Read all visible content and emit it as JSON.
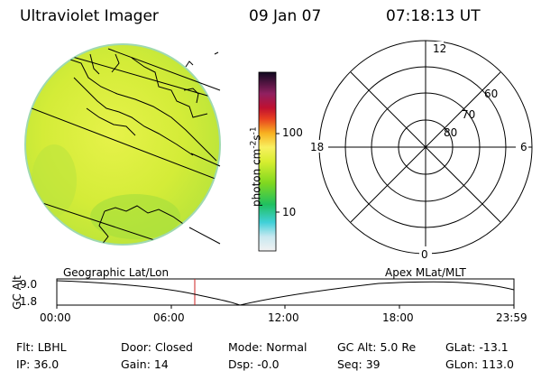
{
  "header": {
    "title": "Ultraviolet Imager",
    "date": "09 Jan 07",
    "time": "07:18:13 UT"
  },
  "colorbar": {
    "label": "photon cm-2s-1",
    "ticks": [
      "100",
      "10"
    ],
    "scale": "log"
  },
  "polar_plot": {
    "mlt_labels": {
      "top": "12",
      "left": "18",
      "right": "6",
      "bottom": "0"
    },
    "lat_labels": [
      "60",
      "70",
      "80"
    ]
  },
  "timeline": {
    "ylabel": "GC Alt",
    "yticks": [
      "9.0",
      "1.8"
    ],
    "left_label": "Geographic Lat/Lon",
    "right_label": "Apex MLat/MLT",
    "xticks": [
      "00:00",
      "06:00",
      "12:00",
      "18:00",
      "23:59"
    ],
    "current_time_marker": "07:18:13"
  },
  "status": {
    "row1": [
      {
        "key": "Flt:",
        "value": "LBHL"
      },
      {
        "key": "Door:",
        "value": "Closed"
      },
      {
        "key": "Mode:",
        "value": "Normal"
      },
      {
        "key": "GC Alt:",
        "value": "5.0 Re"
      },
      {
        "key": "GLat:",
        "value": "-13.1"
      }
    ],
    "row2": [
      {
        "key": "IP:",
        "value": "36.0"
      },
      {
        "key": "Gain:",
        "value": "14"
      },
      {
        "key": "Dsp:",
        "value": "-0.0"
      },
      {
        "key": "Seq:",
        "value": "39"
      },
      {
        "key": "GLon:",
        "value": "113.0"
      }
    ]
  },
  "colors": {
    "disk": "#d8ef3a",
    "marker": "#cc2222"
  }
}
